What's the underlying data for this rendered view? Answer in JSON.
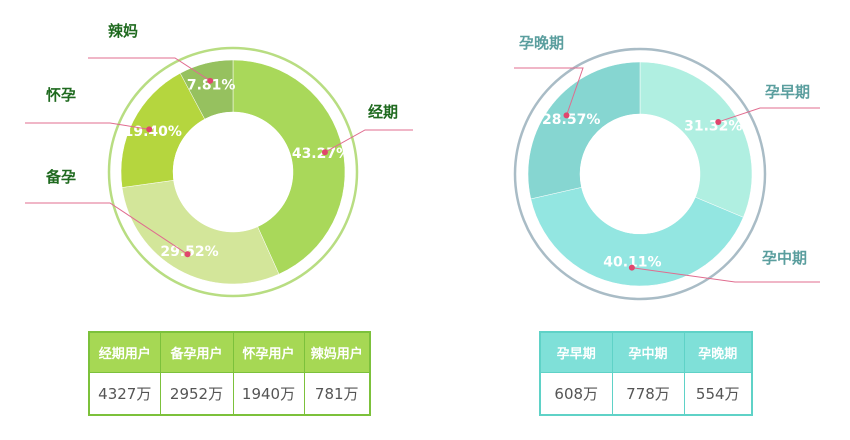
{
  "chart_data": [
    {
      "type": "pie",
      "categories": [
        "经期",
        "备孕",
        "怀孕",
        "辣妈"
      ],
      "values": [
        43.27,
        29.52,
        19.4,
        7.81
      ],
      "value_labels": [
        "43.27%",
        "29.52%",
        "19.40%",
        "7.81%"
      ],
      "colors": [
        "#a9d85a",
        "#d3e69a",
        "#b5d63e",
        "#96c15f"
      ],
      "ring_color": "#b8dd82",
      "label_color": "#1f6a1f"
    },
    {
      "type": "pie",
      "categories": [
        "孕早期",
        "孕中期",
        "孕晚期"
      ],
      "values": [
        31.32,
        40.11,
        28.57
      ],
      "value_labels": [
        "31.32%",
        "40.11%",
        "28.57%"
      ],
      "colors": [
        "#b0efe1",
        "#93e6e1",
        "#86d6d1"
      ],
      "ring_color": "#a9bcc6",
      "label_color": "#5a9e9e"
    }
  ],
  "table_left": {
    "headers": [
      "经期用户",
      "备孕用户",
      "怀孕用户",
      "辣妈用户"
    ],
    "values": [
      "4327万",
      "2952万",
      "1940万",
      "781万"
    ]
  },
  "table_right": {
    "headers": [
      "孕早期",
      "孕中期",
      "孕晚期"
    ],
    "values": [
      "608万",
      "778万",
      "554万"
    ]
  },
  "colors": {
    "leader_line": "#e06c8f",
    "leader_dot": "#e0466d"
  }
}
